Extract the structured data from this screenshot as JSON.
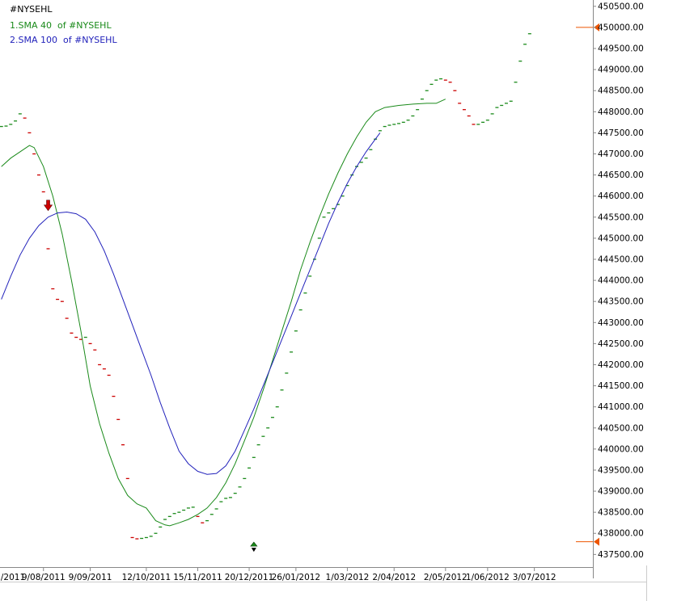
{
  "chart_data": {
    "type": "line",
    "title": "#NYSEHL",
    "xlabel": "",
    "ylabel": "",
    "ylim": [
      437200,
      450650
    ],
    "yticks": [
      437500,
      438000,
      438500,
      439000,
      439500,
      440000,
      440500,
      441000,
      441500,
      442000,
      442500,
      443000,
      443500,
      444000,
      444500,
      445000,
      445500,
      446000,
      446500,
      447000,
      447500,
      448000,
      448500,
      449000,
      449500,
      450000,
      450500
    ],
    "ytick_labels": [
      "437500.00",
      "438000.00",
      "438500.00",
      "439000.00",
      "439500.00",
      "440000.00",
      "440500.00",
      "441000.00",
      "441500.00",
      "442000.00",
      "442500.00",
      "443000.00",
      "443500.00",
      "444000.00",
      "444500.00",
      "445000.00",
      "445500.00",
      "446000.00",
      "446500.00",
      "447000.00",
      "447500.00",
      "448000.00",
      "448500.00",
      "449000.00",
      "449500.00",
      "450000.00",
      "450500.00"
    ],
    "xticks": [
      {
        "label": "/2011",
        "bar": -1.5
      },
      {
        "label": "9/08/2011",
        "bar": 8
      },
      {
        "label": "9/09/2011",
        "bar": 18
      },
      {
        "label": "12/10/2011",
        "bar": 30
      },
      {
        "label": "15/11/2011",
        "bar": 41
      },
      {
        "label": "20/12/2011",
        "bar": 52
      },
      {
        "label": "26/01/2012",
        "bar": 62
      },
      {
        "label": "1/03/2012",
        "bar": 73
      },
      {
        "label": "2/04/2012",
        "bar": 83
      },
      {
        "label": "2/05/2012",
        "bar": 94
      },
      {
        "label": "1/06/2012",
        "bar": 103
      },
      {
        "label": "3/07/2012",
        "bar": 113
      }
    ],
    "price_points": [
      [
        -1,
        447650
      ],
      [
        0,
        447660
      ],
      [
        1,
        447700
      ],
      [
        2,
        447780
      ],
      [
        3,
        447950
      ],
      [
        4,
        447850
      ],
      [
        5,
        447500
      ],
      [
        6,
        447000
      ],
      [
        7,
        446500
      ],
      [
        8,
        446100
      ],
      [
        9,
        444750
      ],
      [
        10,
        443800
      ],
      [
        11,
        443550
      ],
      [
        12,
        443500
      ],
      [
        13,
        443100
      ],
      [
        14,
        442750
      ],
      [
        15,
        442650
      ],
      [
        16,
        442600
      ],
      [
        17,
        442650
      ],
      [
        18,
        442500
      ],
      [
        19,
        442350
      ],
      [
        20,
        442000
      ],
      [
        21,
        441900
      ],
      [
        22,
        441750
      ],
      [
        23,
        441250
      ],
      [
        24,
        440700
      ],
      [
        25,
        440100
      ],
      [
        26,
        439300
      ],
      [
        27,
        437900
      ],
      [
        28,
        437870
      ],
      [
        29,
        437880
      ],
      [
        30,
        437900
      ],
      [
        31,
        437930
      ],
      [
        32,
        438000
      ],
      [
        33,
        438150
      ],
      [
        34,
        438330
      ],
      [
        35,
        438400
      ],
      [
        36,
        438470
      ],
      [
        37,
        438500
      ],
      [
        38,
        438550
      ],
      [
        39,
        438600
      ],
      [
        40,
        438620
      ],
      [
        41,
        438400
      ],
      [
        42,
        438250
      ],
      [
        43,
        438300
      ],
      [
        44,
        438450
      ],
      [
        45,
        438580
      ],
      [
        46,
        438750
      ],
      [
        47,
        438830
      ],
      [
        48,
        438850
      ],
      [
        49,
        438950
      ],
      [
        50,
        439100
      ],
      [
        51,
        439300
      ],
      [
        52,
        439550
      ],
      [
        53,
        439800
      ],
      [
        54,
        440100
      ],
      [
        55,
        440300
      ],
      [
        56,
        440500
      ],
      [
        57,
        440750
      ],
      [
        58,
        441000
      ],
      [
        59,
        441400
      ],
      [
        60,
        441800
      ],
      [
        61,
        442300
      ],
      [
        62,
        442800
      ],
      [
        63,
        443300
      ],
      [
        64,
        443700
      ],
      [
        65,
        444100
      ],
      [
        66,
        444500
      ],
      [
        67,
        445000
      ],
      [
        68,
        445500
      ],
      [
        69,
        445600
      ],
      [
        70,
        445700
      ],
      [
        71,
        445800
      ],
      [
        72,
        446000
      ],
      [
        73,
        446250
      ],
      [
        74,
        446500
      ],
      [
        75,
        446700
      ],
      [
        76,
        446800
      ],
      [
        77,
        446900
      ],
      [
        78,
        447100
      ],
      [
        79,
        447350
      ],
      [
        80,
        447550
      ],
      [
        81,
        447650
      ],
      [
        82,
        447680
      ],
      [
        83,
        447700
      ],
      [
        84,
        447720
      ],
      [
        85,
        447750
      ],
      [
        86,
        447800
      ],
      [
        87,
        447900
      ],
      [
        88,
        448050
      ],
      [
        89,
        448300
      ],
      [
        90,
        448500
      ],
      [
        91,
        448650
      ],
      [
        92,
        448750
      ],
      [
        93,
        448780
      ],
      [
        94,
        448750
      ],
      [
        95,
        448700
      ],
      [
        96,
        448500
      ],
      [
        97,
        448200
      ],
      [
        98,
        448050
      ],
      [
        99,
        447900
      ],
      [
        100,
        447700
      ],
      [
        101,
        447700
      ],
      [
        102,
        447750
      ],
      [
        103,
        447800
      ],
      [
        104,
        447950
      ],
      [
        105,
        448100
      ],
      [
        106,
        448150
      ],
      [
        107,
        448200
      ],
      [
        108,
        448250
      ],
      [
        109,
        448700
      ],
      [
        110,
        449200
      ],
      [
        111,
        449600
      ],
      [
        112,
        449850
      ]
    ],
    "series": [
      {
        "name": "1.SMA 40 of #NYSEHL",
        "color": "#1a8a1a",
        "points": [
          [
            -1,
            446700
          ],
          [
            1,
            446900
          ],
          [
            3,
            447050
          ],
          [
            5,
            447200
          ],
          [
            6,
            447150
          ],
          [
            8,
            446700
          ],
          [
            10,
            446000
          ],
          [
            12,
            445100
          ],
          [
            14,
            444000
          ],
          [
            16,
            442800
          ],
          [
            18,
            441500
          ],
          [
            20,
            440600
          ],
          [
            22,
            439900
          ],
          [
            24,
            439300
          ],
          [
            26,
            438900
          ],
          [
            28,
            438700
          ],
          [
            30,
            438600
          ],
          [
            32,
            438300
          ],
          [
            34,
            438200
          ],
          [
            35,
            438180
          ],
          [
            37,
            438250
          ],
          [
            39,
            438330
          ],
          [
            41,
            438450
          ],
          [
            43,
            438600
          ],
          [
            45,
            438850
          ],
          [
            47,
            439200
          ],
          [
            49,
            439650
          ],
          [
            51,
            440200
          ],
          [
            53,
            440750
          ],
          [
            55,
            441400
          ],
          [
            57,
            442100
          ],
          [
            59,
            442800
          ],
          [
            61,
            443500
          ],
          [
            63,
            444250
          ],
          [
            65,
            444900
          ],
          [
            67,
            445500
          ],
          [
            69,
            446050
          ],
          [
            71,
            446550
          ],
          [
            73,
            447000
          ],
          [
            75,
            447400
          ],
          [
            77,
            447750
          ],
          [
            79,
            448000
          ],
          [
            81,
            448100
          ],
          [
            84,
            448150
          ],
          [
            87,
            448180
          ],
          [
            90,
            448200
          ],
          [
            92,
            448200
          ],
          [
            93,
            448250
          ],
          [
            94,
            448300
          ]
        ]
      },
      {
        "name": "2.SMA 100 of #NYSEHL",
        "color": "#2222bb",
        "points": [
          [
            -1,
            443550
          ],
          [
            1,
            444100
          ],
          [
            3,
            444600
          ],
          [
            5,
            445000
          ],
          [
            7,
            445300
          ],
          [
            9,
            445500
          ],
          [
            11,
            445600
          ],
          [
            13,
            445620
          ],
          [
            15,
            445580
          ],
          [
            17,
            445450
          ],
          [
            19,
            445150
          ],
          [
            21,
            444700
          ],
          [
            23,
            444150
          ],
          [
            25,
            443550
          ],
          [
            27,
            442950
          ],
          [
            29,
            442350
          ],
          [
            31,
            441750
          ],
          [
            33,
            441100
          ],
          [
            35,
            440500
          ],
          [
            37,
            439950
          ],
          [
            39,
            439650
          ],
          [
            41,
            439470
          ],
          [
            43,
            439400
          ],
          [
            45,
            439420
          ],
          [
            47,
            439600
          ],
          [
            49,
            439950
          ],
          [
            51,
            440450
          ],
          [
            53,
            440950
          ],
          [
            55,
            441500
          ],
          [
            57,
            442050
          ],
          [
            59,
            442600
          ],
          [
            61,
            443150
          ],
          [
            63,
            443700
          ],
          [
            65,
            444250
          ],
          [
            67,
            444800
          ],
          [
            69,
            445350
          ],
          [
            71,
            445850
          ],
          [
            73,
            446300
          ],
          [
            75,
            446700
          ],
          [
            77,
            447050
          ],
          [
            79,
            447350
          ],
          [
            80,
            447500
          ]
        ]
      }
    ],
    "legend": [
      {
        "text": "#NYSEHL",
        "color": "#000000"
      },
      {
        "text": "1.SMA 40  of #NYSEHL",
        "color": "#1a8a1a"
      },
      {
        "text": "2.SMA 100  of #NYSEHL",
        "color": "#2222bb"
      }
    ],
    "down_arrow": {
      "bar": 9,
      "value": 445750
    },
    "up_down_marker": {
      "bar": 53,
      "value": 437600
    },
    "right_markers": [
      450000,
      437800
    ],
    "up_color": "#1a8a1a",
    "down_color": "#cc0000",
    "grid": false,
    "legend_position": "top-left"
  }
}
